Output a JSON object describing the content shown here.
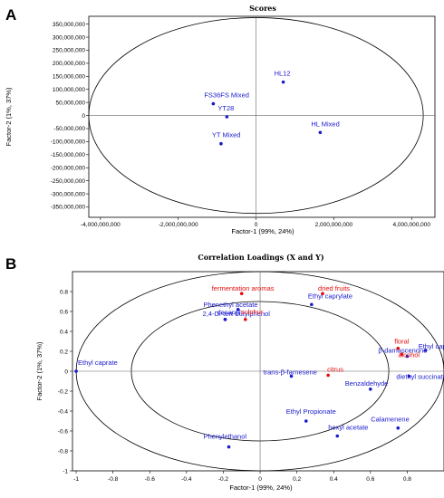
{
  "panels": [
    "A",
    "B"
  ],
  "chart_data": [
    {
      "type": "scatter",
      "title": "Scores",
      "xlabel": "Factor-1 (99%, 24%)",
      "ylabel": "Factor-2 (1%, 37%)",
      "xlim": [
        -4300000000,
        4600000000
      ],
      "ylim": [
        -390000000,
        380000000
      ],
      "xticks": [
        -4000000000,
        -2000000000,
        0,
        2000000000,
        4000000000
      ],
      "xtick_labels": [
        "-4,000,000,000",
        "-2,000,000,000",
        "0",
        "2,000,000,000",
        "4,000,000,000"
      ],
      "yticks": [
        350000000,
        300000000,
        250000000,
        200000000,
        150000000,
        100000000,
        50000000,
        0,
        -50000000,
        -100000000,
        -150000000,
        -200000000,
        -250000000,
        -300000000,
        -350000000
      ],
      "ytick_labels": [
        "350,000,000",
        "300,000,000",
        "250,000,000",
        "200,000,000",
        "150,000,000",
        "100,000,000",
        "50,000,000",
        "0",
        "-50,000,000",
        "-100,000,000",
        "-150,000,000",
        "-200,000,000",
        "-250,000,000",
        "-300,000,000",
        "-350,000,000"
      ],
      "ellipse": {
        "cx": 0,
        "cy": 0,
        "rx": 4300000000,
        "ry": 375000000
      },
      "colors": {
        "points": "#1a1acc",
        "labels": "#1a1acc"
      },
      "points": [
        {
          "label": "HL12",
          "x": 700000000,
          "y": 128000000
        },
        {
          "label": "FS36FS Mixed",
          "x": -1100000000,
          "y": 45000000
        },
        {
          "label": "YT28",
          "x": -750000000,
          "y": -5000000
        },
        {
          "label": "YT Mixed",
          "x": -900000000,
          "y": -108000000
        },
        {
          "label": "HL Mixed",
          "x": 1650000000,
          "y": -65000000
        }
      ]
    },
    {
      "type": "scatter",
      "title": "Correlation Loadings (X and Y)",
      "xlabel": "Factor-1 (99%, 24%)",
      "ylabel": "Factor-2 (1%, 37%)",
      "xlim": [
        -1,
        1
      ],
      "ylim": [
        -1,
        1
      ],
      "xticks": [
        -1,
        -0.8,
        -0.6,
        -0.4,
        -0.2,
        0,
        0.2,
        0.4,
        0.6,
        0.8
      ],
      "xtick_labels": [
        "-1",
        "-0.8",
        "-0.6",
        "-0.4",
        "-0.2",
        "0",
        "0.2",
        "0.4",
        "0.6",
        "0.8"
      ],
      "yticks": [
        0.8,
        0.6,
        0.4,
        0.2,
        0,
        -0.2,
        -0.4,
        -0.6,
        -0.8,
        -1
      ],
      "ytick_labels": [
        "0.8",
        "0.6",
        "0.4",
        "0.2",
        "0",
        "-0.2",
        "-0.4",
        "-0.6",
        "-0.8",
        "-1"
      ],
      "circles": [
        1.0,
        0.7
      ],
      "colors": {
        "x_variables": "#1a1acc",
        "y_variables": "#e01010"
      },
      "x_variables": [
        {
          "label": "Ethyl caprate",
          "x": -1.0,
          "y": 0.0
        },
        {
          "label": "Phenethyl acetate",
          "x": -0.19,
          "y": 0.52
        },
        {
          "label": "decanol",
          "x": -0.19,
          "y": 0.52
        },
        {
          "label": "2,4-Di-tert-butylphenol",
          "x": -0.12,
          "y": 0.62
        },
        {
          "label": "Ethyl caprylate",
          "x": 0.28,
          "y": 0.67
        },
        {
          "label": "Ethyl caproate",
          "x": 0.9,
          "y": 0.21
        },
        {
          "label": "β-damascenone",
          "x": 0.8,
          "y": 0.15
        },
        {
          "label": "diethyl succinate",
          "x": 0.81,
          "y": -0.05
        },
        {
          "label": "Benzaldehyde",
          "x": 0.6,
          "y": -0.18
        },
        {
          "label": "trans-β-farnesene",
          "x": 0.17,
          "y": -0.05
        },
        {
          "label": "Ethyl Propionate",
          "x": 0.25,
          "y": -0.5
        },
        {
          "label": "hexyl acetate",
          "x": 0.42,
          "y": -0.65
        },
        {
          "label": "Calamenene",
          "x": 0.75,
          "y": -0.57
        },
        {
          "label": "Phenylethanol",
          "x": -0.17,
          "y": -0.76
        }
      ],
      "y_variables": [
        {
          "label": "fermentation aromas",
          "x": -0.1,
          "y": 0.78
        },
        {
          "label": "dried fruits",
          "x": 0.34,
          "y": 0.78
        },
        {
          "label": "floral",
          "x": 0.75,
          "y": 0.23
        },
        {
          "label": "alcohol",
          "x": 0.77,
          "y": 0.17
        },
        {
          "label": "citrus",
          "x": 0.37,
          "y": -0.04
        },
        {
          "label": "sulphur",
          "x": -0.08,
          "y": 0.52
        }
      ]
    }
  ]
}
